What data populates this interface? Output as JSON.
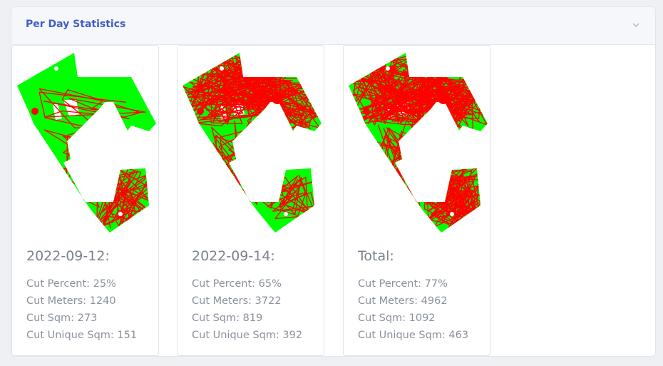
{
  "panel": {
    "title": "Per Day Statistics",
    "collapse_icon": "chevron-down-icon"
  },
  "colors": {
    "title_blue": "#3f5cc9",
    "uncut_area": "#00ff00",
    "cut_path": "#ff0000"
  },
  "cards": [
    {
      "title": "2022-09-12:",
      "map_icon": "cut-coverage-map",
      "cut_percent": "Cut Percent: 25%",
      "cut_meters": "Cut Meters: 1240",
      "cut_sqm": "Cut Sqm: 273",
      "cut_unique_sqm": "Cut Unique Sqm: 151"
    },
    {
      "title": "2022-09-14:",
      "map_icon": "cut-coverage-map",
      "cut_percent": "Cut Percent: 65%",
      "cut_meters": "Cut Meters: 3722",
      "cut_sqm": "Cut Sqm: 819",
      "cut_unique_sqm": "Cut Unique Sqm: 392"
    },
    {
      "title": "Total:",
      "map_icon": "cut-coverage-map",
      "cut_percent": "Cut Percent: 77%",
      "cut_meters": "Cut Meters: 4962",
      "cut_sqm": "Cut Sqm: 1092",
      "cut_unique_sqm": "Cut Unique Sqm: 463"
    }
  ]
}
